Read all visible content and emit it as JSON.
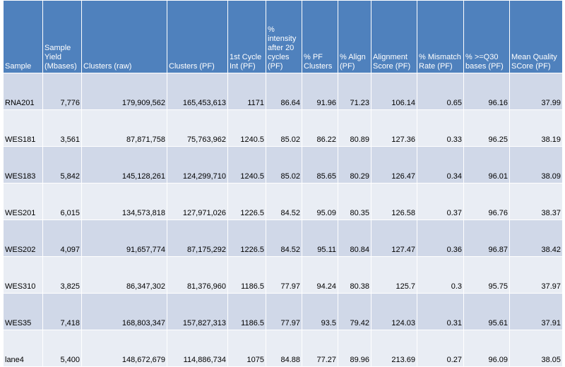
{
  "chart_data": {
    "type": "table",
    "columns": [
      "Sample",
      "Sample Yield (Mbases)",
      "Clusters (raw)",
      "Clusters (PF)",
      "1st Cycle Int (PF)",
      "% intensity after 20 cycles (PF)",
      "% PF Clusters",
      "% Align (PF)",
      "Alignment Score (PF)",
      "% Mismatch Rate (PF)",
      "% >=Q30 bases (PF)",
      "Mean Quality SCore (PF)"
    ],
    "rows": [
      [
        "RNA201",
        "7,776",
        "179,909,562",
        "165,453,613",
        "1171",
        "86.64",
        "91.96",
        "71.23",
        "106.14",
        "0.65",
        "96.16",
        "37.99"
      ],
      [
        "WES181",
        "3,561",
        "87,871,758",
        "75,763,962",
        "1240.5",
        "85.02",
        "86.22",
        "80.89",
        "127.36",
        "0.33",
        "96.25",
        "38.19"
      ],
      [
        "WES183",
        "5,842",
        "145,128,261",
        "124,299,710",
        "1240.5",
        "85.02",
        "85.65",
        "80.29",
        "126.47",
        "0.34",
        "96.01",
        "38.09"
      ],
      [
        "WES201",
        "6,015",
        "134,573,818",
        "127,971,026",
        "1226.5",
        "84.52",
        "95.09",
        "80.35",
        "126.58",
        "0.37",
        "96.76",
        "38.37"
      ],
      [
        "WES202",
        "4,097",
        "91,657,774",
        "87,175,292",
        "1226.5",
        "84.52",
        "95.11",
        "80.84",
        "127.47",
        "0.36",
        "96.87",
        "38.42"
      ],
      [
        "WES310",
        "3,825",
        "86,347,302",
        "81,376,960",
        "1186.5",
        "77.97",
        "94.24",
        "80.38",
        "125.7",
        "0.3",
        "95.75",
        "37.97"
      ],
      [
        "WES35",
        "7,418",
        "168,803,347",
        "157,827,313",
        "1186.5",
        "77.97",
        "93.5",
        "79.42",
        "124.03",
        "0.31",
        "95.61",
        "37.91"
      ],
      [
        "lane4",
        "5,400",
        "148,672,679",
        "114,886,734",
        "1075",
        "84.88",
        "77.27",
        "89.96",
        "213.69",
        "0.27",
        "96.09",
        "38.05"
      ]
    ]
  },
  "colors": {
    "header_bg": "#4f81bd",
    "header_text": "#ffffff",
    "row_band_dark": "#d0d8e8",
    "row_band_light": "#e9edf4"
  }
}
